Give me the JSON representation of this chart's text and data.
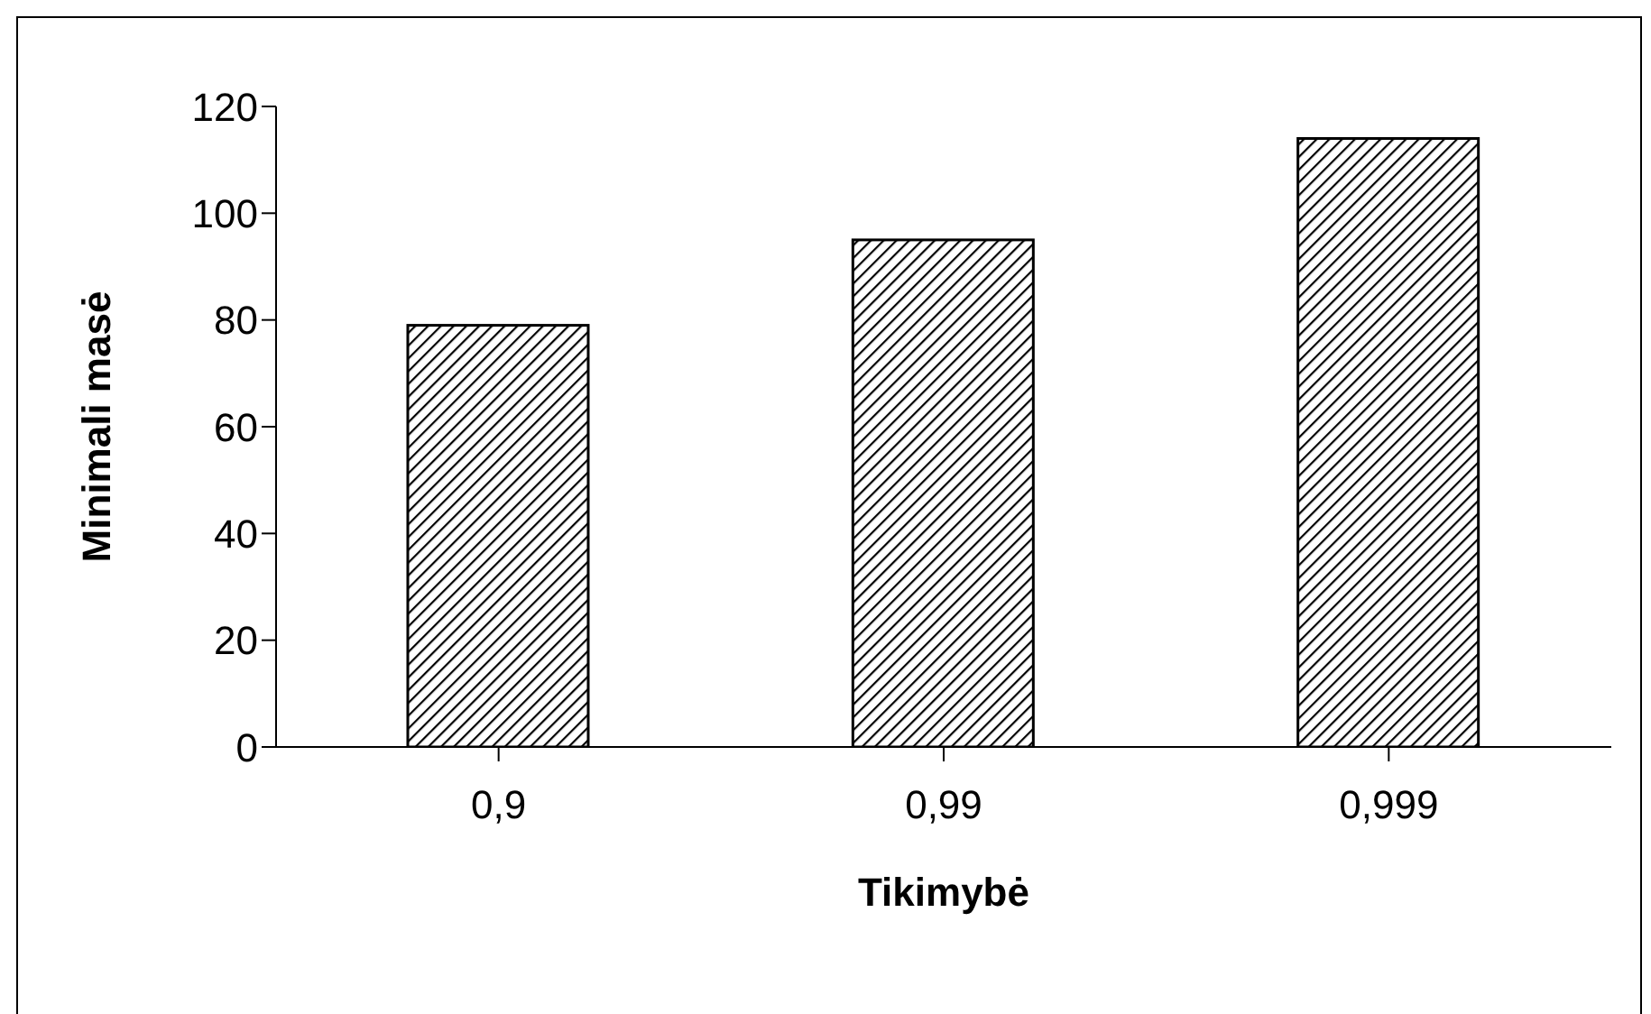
{
  "chart_data": {
    "type": "bar",
    "xlabel": "Tikimybė",
    "ylabel": "Minimali masė",
    "categories": [
      "0,9",
      "0,99",
      "0,999"
    ],
    "values": [
      79,
      95,
      114
    ],
    "color": "#000000",
    "ylim": [
      0,
      120
    ],
    "yticks": [
      0,
      20,
      40,
      60,
      80,
      100,
      120
    ],
    "grid": false,
    "legend": false
  }
}
